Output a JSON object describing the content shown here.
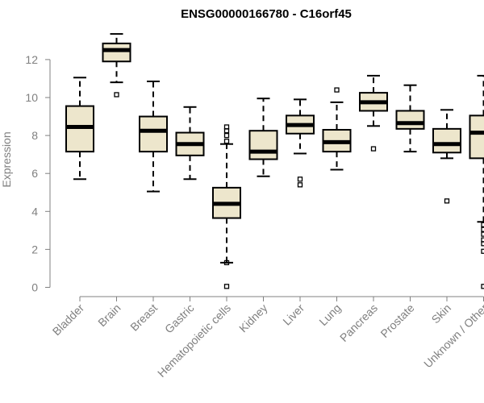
{
  "chart_data": {
    "type": "box",
    "title": "ENSG00000166780 - C16orf45",
    "xlabel": "",
    "ylabel": "Expression",
    "ylim": [
      0,
      13.6
    ],
    "yticks": [
      0,
      2,
      4,
      6,
      8,
      10,
      12
    ],
    "grid": false,
    "legend": "none",
    "box_fill": "#ede6cc",
    "median_color": "#000000",
    "axis_color": "#808080",
    "categories": [
      "Bladder",
      "Brain",
      "Breast",
      "Gastric",
      "Hematopoietic cells",
      "Kidney",
      "Liver",
      "Lung",
      "Pancreas",
      "Prostate",
      "Skin",
      "Unknown / Other"
    ],
    "boxes": [
      {
        "category": "Bladder",
        "whisker_low": 5.7,
        "q1": 7.15,
        "median": 8.45,
        "q3": 9.55,
        "whisker_high": 11.05,
        "outliers": []
      },
      {
        "category": "Brain",
        "whisker_low": 10.8,
        "q1": 11.9,
        "median": 12.5,
        "q3": 12.85,
        "whisker_high": 13.35,
        "outliers": [
          10.15
        ]
      },
      {
        "category": "Breast",
        "whisker_low": 5.05,
        "q1": 7.15,
        "median": 8.25,
        "q3": 9.0,
        "whisker_high": 10.85,
        "outliers": []
      },
      {
        "category": "Gastric",
        "whisker_low": 5.7,
        "q1": 6.95,
        "median": 7.55,
        "q3": 8.15,
        "whisker_high": 9.5,
        "outliers": []
      },
      {
        "category": "Hematopoietic cells",
        "whisker_low": 1.3,
        "q1": 3.65,
        "median": 4.4,
        "q3": 5.25,
        "whisker_high": 7.55,
        "outliers": [
          0.05,
          1.3,
          7.7,
          8.0,
          8.25,
          8.45
        ]
      },
      {
        "category": "Kidney",
        "whisker_low": 5.85,
        "q1": 6.75,
        "median": 7.15,
        "q3": 8.25,
        "whisker_high": 9.95,
        "outliers": []
      },
      {
        "category": "Liver",
        "whisker_low": 7.05,
        "q1": 8.1,
        "median": 8.55,
        "q3": 9.05,
        "whisker_high": 9.9,
        "outliers": [
          5.4,
          5.7
        ]
      },
      {
        "category": "Lung",
        "whisker_low": 6.2,
        "q1": 7.15,
        "median": 7.65,
        "q3": 8.3,
        "whisker_high": 9.75,
        "outliers": [
          10.4
        ]
      },
      {
        "category": "Pancreas",
        "whisker_low": 8.5,
        "q1": 9.3,
        "median": 9.75,
        "q3": 10.25,
        "whisker_high": 11.15,
        "outliers": [
          7.3
        ]
      },
      {
        "category": "Prostate",
        "whisker_low": 7.15,
        "q1": 8.35,
        "median": 8.65,
        "q3": 9.3,
        "whisker_high": 10.65,
        "outliers": []
      },
      {
        "category": "Skin",
        "whisker_low": 6.8,
        "q1": 7.1,
        "median": 7.55,
        "q3": 8.35,
        "whisker_high": 9.35,
        "outliers": [
          4.55
        ]
      },
      {
        "category": "Unknown / Other",
        "whisker_low": 3.45,
        "q1": 6.8,
        "median": 8.15,
        "q3": 9.05,
        "whisker_high": 11.15,
        "outliers": [
          0.05,
          1.9,
          2.3,
          2.5,
          2.8,
          3.05,
          3.3
        ]
      }
    ]
  }
}
